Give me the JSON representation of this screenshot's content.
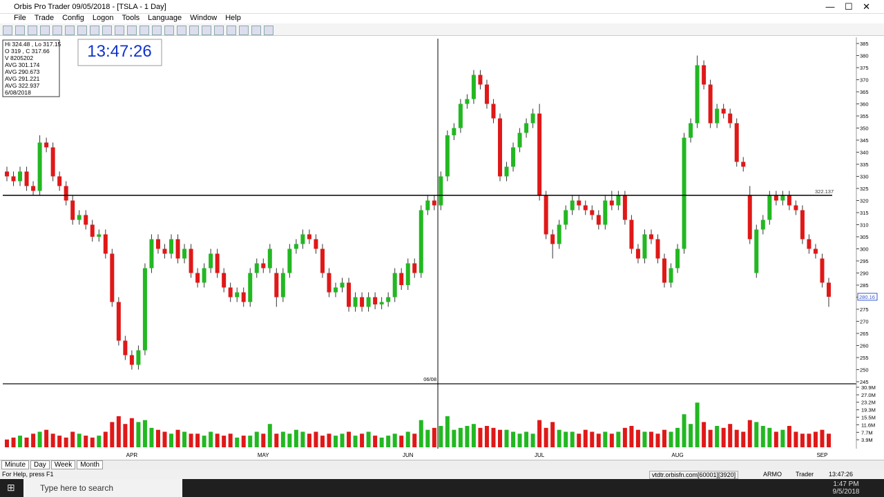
{
  "window": {
    "title": "Orbis Pro Trader 09/05/2018 - [TSLA - 1 Day]",
    "menu": [
      "File",
      "Trade",
      "Config",
      "Logon",
      "Tools",
      "Language",
      "Window",
      "Help"
    ],
    "clock": "13:47:26",
    "info": [
      "Hi 324.48 , Lo 317.15",
      "O 319 , C 317.66",
      "V 8205202",
      "AVG 301.174",
      "AVG 290.673",
      "AVG 291.221",
      "AVG 322.937",
      "6/08/2018"
    ],
    "tabs": [
      "Minute",
      "Day",
      "Week",
      "Month"
    ],
    "status": {
      "help": "For Help, press F1",
      "server": "vtdtr.orbisfn.com[60001][3920]",
      "user": "ARMO",
      "role": "Trader",
      "time": "13:47:26"
    },
    "taskbar": {
      "search": "Type here to search",
      "time": "1:47 PM",
      "date": "9/5/2018"
    }
  },
  "chart_data": {
    "type": "candlestick",
    "up_color": "#22b822",
    "down_color": "#e01818",
    "ylim": [
      245,
      387
    ],
    "yticks": [
      245,
      250,
      255,
      260,
      265,
      270,
      275,
      280,
      285,
      290,
      295,
      300,
      305,
      310,
      315,
      320,
      325,
      330,
      335,
      340,
      345,
      350,
      355,
      360,
      365,
      370,
      375,
      380,
      385
    ],
    "hline": {
      "value": 322.137,
      "label": "322.137"
    },
    "last": {
      "value": 280.16,
      "label": "280.16"
    },
    "cursor_label": "06/08",
    "ohlc": [
      [
        332,
        334,
        328,
        330
      ],
      [
        330,
        332,
        326,
        328
      ],
      [
        328,
        334,
        326,
        332
      ],
      [
        332,
        334,
        324,
        326
      ],
      [
        326,
        328,
        322,
        324
      ],
      [
        324,
        347,
        322,
        344
      ],
      [
        344,
        346,
        340,
        342
      ],
      [
        342,
        344,
        328,
        330
      ],
      [
        330,
        332,
        324,
        326
      ],
      [
        326,
        328,
        318,
        320
      ],
      [
        320,
        322,
        310,
        312
      ],
      [
        312,
        316,
        310,
        314
      ],
      [
        314,
        316,
        308,
        310
      ],
      [
        310,
        312,
        303,
        305
      ],
      [
        305,
        308,
        303,
        306
      ],
      [
        306,
        308,
        296,
        298
      ],
      [
        298,
        300,
        276,
        278
      ],
      [
        278,
        280,
        260,
        262
      ],
      [
        262,
        264,
        254,
        256
      ],
      [
        256,
        258,
        250,
        252
      ],
      [
        252,
        260,
        250,
        258
      ],
      [
        258,
        294,
        256,
        292
      ],
      [
        292,
        306,
        290,
        304
      ],
      [
        304,
        306,
        298,
        300
      ],
      [
        300,
        302,
        296,
        298
      ],
      [
        298,
        306,
        296,
        304
      ],
      [
        304,
        306,
        294,
        296
      ],
      [
        296,
        302,
        294,
        300
      ],
      [
        300,
        302,
        288,
        290
      ],
      [
        290,
        292,
        284,
        286
      ],
      [
        286,
        294,
        284,
        292
      ],
      [
        292,
        300,
        290,
        298
      ],
      [
        298,
        300,
        288,
        290
      ],
      [
        290,
        292,
        282,
        284
      ],
      [
        284,
        286,
        278,
        280
      ],
      [
        280,
        284,
        278,
        282
      ],
      [
        282,
        284,
        276,
        278
      ],
      [
        278,
        292,
        276,
        290
      ],
      [
        290,
        296,
        288,
        294
      ],
      [
        294,
        296,
        290,
        292
      ],
      [
        292,
        302,
        290,
        300
      ],
      [
        290,
        292,
        276,
        280
      ],
      [
        280,
        292,
        278,
        290
      ],
      [
        290,
        302,
        288,
        300
      ],
      [
        300,
        304,
        298,
        302
      ],
      [
        302,
        308,
        300,
        306
      ],
      [
        306,
        308,
        302,
        304
      ],
      [
        304,
        306,
        298,
        300
      ],
      [
        300,
        302,
        288,
        290
      ],
      [
        290,
        292,
        280,
        282
      ],
      [
        282,
        286,
        280,
        284
      ],
      [
        284,
        288,
        282,
        286
      ],
      [
        286,
        288,
        274,
        276
      ],
      [
        276,
        282,
        274,
        280
      ],
      [
        280,
        282,
        274,
        276
      ],
      [
        276,
        282,
        274,
        280
      ],
      [
        280,
        282,
        275,
        277
      ],
      [
        277,
        280,
        275,
        278
      ],
      [
        278,
        282,
        276,
        280
      ],
      [
        280,
        292,
        278,
        290
      ],
      [
        290,
        292,
        283,
        285
      ],
      [
        285,
        296,
        283,
        294
      ],
      [
        294,
        296,
        288,
        290
      ],
      [
        290,
        318,
        288,
        316
      ],
      [
        316,
        322,
        314,
        320
      ],
      [
        320,
        322,
        316,
        318
      ],
      [
        318,
        332,
        316,
        330
      ],
      [
        330,
        349,
        328,
        347
      ],
      [
        347,
        352,
        345,
        350
      ],
      [
        350,
        362,
        348,
        360
      ],
      [
        360,
        364,
        358,
        362
      ],
      [
        362,
        374,
        360,
        372
      ],
      [
        372,
        374,
        366,
        368
      ],
      [
        368,
        370,
        358,
        360
      ],
      [
        360,
        362,
        352,
        354
      ],
      [
        354,
        356,
        328,
        330
      ],
      [
        330,
        336,
        328,
        334
      ],
      [
        334,
        344,
        332,
        342
      ],
      [
        342,
        350,
        340,
        348
      ],
      [
        348,
        354,
        346,
        352
      ],
      [
        352,
        358,
        350,
        356
      ],
      [
        356,
        360,
        320,
        322
      ],
      [
        322,
        324,
        304,
        306
      ],
      [
        306,
        308,
        296,
        302
      ],
      [
        302,
        312,
        300,
        310
      ],
      [
        310,
        318,
        308,
        316
      ],
      [
        316,
        322,
        314,
        320
      ],
      [
        320,
        322,
        316,
        318
      ],
      [
        318,
        320,
        314,
        316
      ],
      [
        316,
        318,
        312,
        314
      ],
      [
        314,
        316,
        308,
        310
      ],
      [
        310,
        322,
        308,
        320
      ],
      [
        320,
        324,
        316,
        318
      ],
      [
        318,
        324,
        316,
        322
      ],
      [
        322,
        324,
        310,
        312
      ],
      [
        312,
        314,
        298,
        300
      ],
      [
        300,
        302,
        294,
        296
      ],
      [
        296,
        308,
        294,
        306
      ],
      [
        306,
        308,
        302,
        304
      ],
      [
        304,
        306,
        294,
        296
      ],
      [
        296,
        298,
        284,
        286
      ],
      [
        286,
        294,
        284,
        292
      ],
      [
        292,
        302,
        290,
        300
      ],
      [
        300,
        348,
        298,
        346
      ],
      [
        346,
        354,
        344,
        352
      ],
      [
        352,
        380,
        350,
        376
      ],
      [
        376,
        378,
        366,
        368
      ],
      [
        368,
        370,
        350,
        352
      ],
      [
        352,
        360,
        350,
        358
      ],
      [
        358,
        360,
        354,
        356
      ],
      [
        356,
        358,
        350,
        352
      ],
      [
        352,
        354,
        334,
        336
      ],
      [
        336,
        338,
        332,
        334
      ],
      [
        322,
        326,
        302,
        304
      ],
      [
        290,
        310,
        288,
        308
      ],
      [
        308,
        314,
        306,
        312
      ],
      [
        312,
        324,
        310,
        322
      ],
      [
        322,
        324,
        318,
        320
      ],
      [
        320,
        324,
        318,
        322
      ],
      [
        322,
        324,
        316,
        318
      ],
      [
        318,
        320,
        314,
        316
      ],
      [
        316,
        318,
        302,
        304
      ],
      [
        304,
        306,
        298,
        300
      ],
      [
        300,
        302,
        296,
        298
      ],
      [
        296,
        298,
        284,
        286
      ],
      [
        286,
        288,
        276,
        280.16
      ]
    ],
    "volume": [
      4,
      5,
      6,
      5,
      7,
      8,
      9,
      7,
      6,
      5,
      8,
      7,
      6,
      5,
      6,
      8,
      13,
      16,
      12,
      15,
      13,
      14,
      10,
      9,
      8,
      7,
      9,
      8,
      7,
      7,
      6,
      8,
      7,
      6,
      7,
      5,
      6,
      6,
      8,
      7,
      12,
      7,
      8,
      7,
      9,
      8,
      7,
      8,
      6,
      7,
      6,
      7,
      8,
      6,
      7,
      8,
      6,
      5,
      6,
      7,
      6,
      8,
      7,
      14,
      9,
      10,
      11,
      16,
      9,
      10,
      11,
      12,
      10,
      11,
      10,
      9,
      9,
      8,
      7,
      8,
      7,
      14,
      10,
      13,
      9,
      8,
      8,
      7,
      9,
      8,
      7,
      8,
      7,
      8,
      10,
      11,
      9,
      8,
      8,
      7,
      9,
      8,
      10,
      17,
      12,
      23,
      13,
      9,
      11,
      10,
      12,
      9,
      8,
      14,
      13,
      11,
      10,
      8,
      9,
      11,
      8,
      7,
      7,
      8,
      9,
      7
    ],
    "vlim": [
      0,
      30.9
    ],
    "vticks": [
      {
        "value": 3.9,
        "label": "3.9M"
      },
      {
        "value": 7.7,
        "label": "7.7M"
      },
      {
        "value": 11.6,
        "label": "11.6M"
      },
      {
        "value": 15.5,
        "label": "15.5M"
      },
      {
        "value": 19.3,
        "label": "19.3M"
      },
      {
        "value": 23.2,
        "label": "23.2M"
      },
      {
        "value": 27.0,
        "label": "27.0M"
      },
      {
        "value": 30.9,
        "label": "30.9M"
      }
    ],
    "months": [
      {
        "label": "APR",
        "at": 19
      },
      {
        "label": "MAY",
        "at": 39
      },
      {
        "label": "JUN",
        "at": 61
      },
      {
        "label": "JUL",
        "at": 81
      },
      {
        "label": "AUG",
        "at": 102
      },
      {
        "label": "SEP",
        "at": 124
      }
    ]
  }
}
